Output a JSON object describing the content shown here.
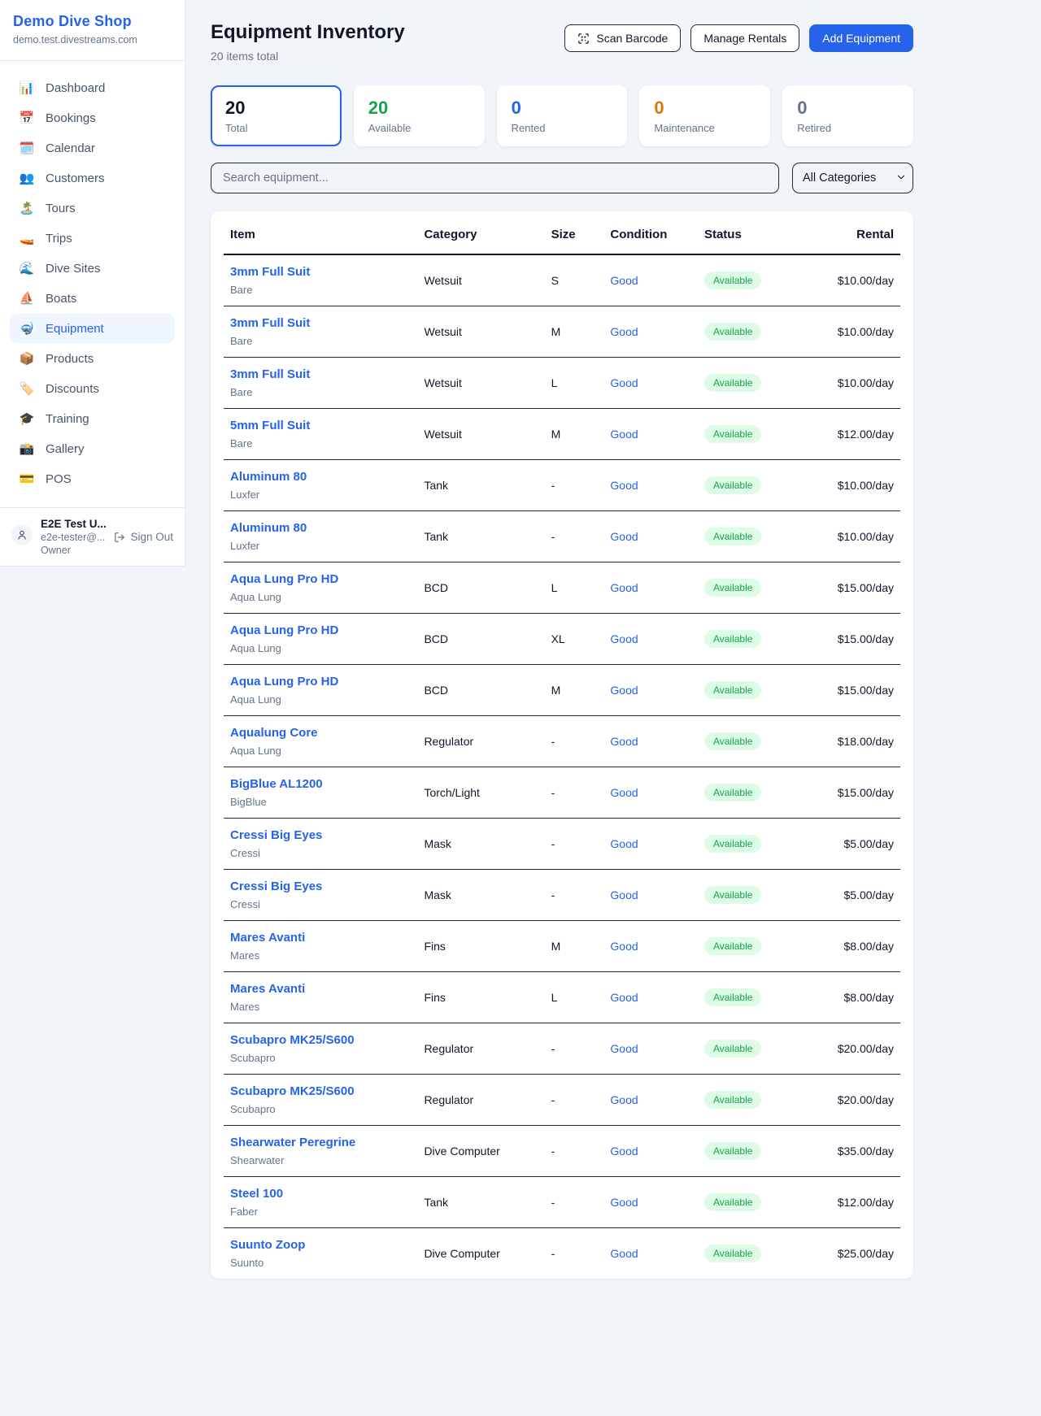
{
  "sidebar": {
    "brand": "Demo Dive Shop",
    "domain": "demo.test.divestreams.com",
    "items": [
      {
        "label": "Dashboard",
        "icon": "📊",
        "icon_name": "bar-chart-icon",
        "active": false
      },
      {
        "label": "Bookings",
        "icon": "📅",
        "icon_name": "calendar-icon",
        "active": false
      },
      {
        "label": "Calendar",
        "icon": "🗓️",
        "icon_name": "spiral-calendar-icon",
        "active": false
      },
      {
        "label": "Customers",
        "icon": "👥",
        "icon_name": "users-icon",
        "active": false
      },
      {
        "label": "Tours",
        "icon": "🏝️",
        "icon_name": "island-icon",
        "active": false
      },
      {
        "label": "Trips",
        "icon": "🚤",
        "icon_name": "speedboat-icon",
        "active": false
      },
      {
        "label": "Dive Sites",
        "icon": "🌊",
        "icon_name": "wave-icon",
        "active": false
      },
      {
        "label": "Boats",
        "icon": "⛵",
        "icon_name": "sailboat-icon",
        "active": false
      },
      {
        "label": "Equipment",
        "icon": "🤿",
        "icon_name": "diving-mask-icon",
        "active": true
      },
      {
        "label": "Products",
        "icon": "📦",
        "icon_name": "package-icon",
        "active": false
      },
      {
        "label": "Discounts",
        "icon": "🏷️",
        "icon_name": "label-tag-icon",
        "active": false
      },
      {
        "label": "Training",
        "icon": "🎓",
        "icon_name": "graduation-cap-icon",
        "active": false
      },
      {
        "label": "Gallery",
        "icon": "📸",
        "icon_name": "camera-icon",
        "active": false
      },
      {
        "label": "POS",
        "icon": "💳",
        "icon_name": "credit-card-icon",
        "active": false
      }
    ],
    "user": {
      "name": "E2E Test U...",
      "email": "e2e-tester@...",
      "role": "Owner",
      "sign_out_label": "Sign Out"
    }
  },
  "header": {
    "title": "Equipment Inventory",
    "subtitle": "20 items total",
    "scan_barcode_label": "Scan Barcode",
    "manage_rentals_label": "Manage Rentals",
    "add_equipment_label": "Add Equipment"
  },
  "stats": [
    {
      "value": "20",
      "label": "Total",
      "color": "#0f172a",
      "selected": true
    },
    {
      "value": "20",
      "label": "Available",
      "color": "#16a34a",
      "selected": false
    },
    {
      "value": "0",
      "label": "Rented",
      "color": "#2563eb",
      "selected": false
    },
    {
      "value": "0",
      "label": "Maintenance",
      "color": "#d97706",
      "selected": false
    },
    {
      "value": "0",
      "label": "Retired",
      "color": "#64748b",
      "selected": false
    }
  ],
  "filters": {
    "search_placeholder": "Search equipment...",
    "category_selected": "All Categories"
  },
  "table": {
    "columns": [
      "Item",
      "Category",
      "Size",
      "Condition",
      "Status",
      "Rental"
    ],
    "rows": [
      {
        "name": "3mm Full Suit",
        "brand": "Bare",
        "category": "Wetsuit",
        "size": "S",
        "condition": "Good",
        "status": "Available",
        "rental": "$10.00/day"
      },
      {
        "name": "3mm Full Suit",
        "brand": "Bare",
        "category": "Wetsuit",
        "size": "M",
        "condition": "Good",
        "status": "Available",
        "rental": "$10.00/day"
      },
      {
        "name": "3mm Full Suit",
        "brand": "Bare",
        "category": "Wetsuit",
        "size": "L",
        "condition": "Good",
        "status": "Available",
        "rental": "$10.00/day"
      },
      {
        "name": "5mm Full Suit",
        "brand": "Bare",
        "category": "Wetsuit",
        "size": "M",
        "condition": "Good",
        "status": "Available",
        "rental": "$12.00/day"
      },
      {
        "name": "Aluminum 80",
        "brand": "Luxfer",
        "category": "Tank",
        "size": "-",
        "condition": "Good",
        "status": "Available",
        "rental": "$10.00/day"
      },
      {
        "name": "Aluminum 80",
        "brand": "Luxfer",
        "category": "Tank",
        "size": "-",
        "condition": "Good",
        "status": "Available",
        "rental": "$10.00/day"
      },
      {
        "name": "Aqua Lung Pro HD",
        "brand": "Aqua Lung",
        "category": "BCD",
        "size": "L",
        "condition": "Good",
        "status": "Available",
        "rental": "$15.00/day"
      },
      {
        "name": "Aqua Lung Pro HD",
        "brand": "Aqua Lung",
        "category": "BCD",
        "size": "XL",
        "condition": "Good",
        "status": "Available",
        "rental": "$15.00/day"
      },
      {
        "name": "Aqua Lung Pro HD",
        "brand": "Aqua Lung",
        "category": "BCD",
        "size": "M",
        "condition": "Good",
        "status": "Available",
        "rental": "$15.00/day"
      },
      {
        "name": "Aqualung Core",
        "brand": "Aqua Lung",
        "category": "Regulator",
        "size": "-",
        "condition": "Good",
        "status": "Available",
        "rental": "$18.00/day"
      },
      {
        "name": "BigBlue AL1200",
        "brand": "BigBlue",
        "category": "Torch/Light",
        "size": "-",
        "condition": "Good",
        "status": "Available",
        "rental": "$15.00/day"
      },
      {
        "name": "Cressi Big Eyes",
        "brand": "Cressi",
        "category": "Mask",
        "size": "-",
        "condition": "Good",
        "status": "Available",
        "rental": "$5.00/day"
      },
      {
        "name": "Cressi Big Eyes",
        "brand": "Cressi",
        "category": "Mask",
        "size": "-",
        "condition": "Good",
        "status": "Available",
        "rental": "$5.00/day"
      },
      {
        "name": "Mares Avanti",
        "brand": "Mares",
        "category": "Fins",
        "size": "M",
        "condition": "Good",
        "status": "Available",
        "rental": "$8.00/day"
      },
      {
        "name": "Mares Avanti",
        "brand": "Mares",
        "category": "Fins",
        "size": "L",
        "condition": "Good",
        "status": "Available",
        "rental": "$8.00/day"
      },
      {
        "name": "Scubapro MK25/S600",
        "brand": "Scubapro",
        "category": "Regulator",
        "size": "-",
        "condition": "Good",
        "status": "Available",
        "rental": "$20.00/day"
      },
      {
        "name": "Scubapro MK25/S600",
        "brand": "Scubapro",
        "category": "Regulator",
        "size": "-",
        "condition": "Good",
        "status": "Available",
        "rental": "$20.00/day"
      },
      {
        "name": "Shearwater Peregrine",
        "brand": "Shearwater",
        "category": "Dive Computer",
        "size": "-",
        "condition": "Good",
        "status": "Available",
        "rental": "$35.00/day"
      },
      {
        "name": "Steel 100",
        "brand": "Faber",
        "category": "Tank",
        "size": "-",
        "condition": "Good",
        "status": "Available",
        "rental": "$12.00/day"
      },
      {
        "name": "Suunto Zoop",
        "brand": "Suunto",
        "category": "Dive Computer",
        "size": "-",
        "condition": "Good",
        "status": "Available",
        "rental": "$25.00/day"
      }
    ]
  },
  "colors": {
    "accent": "#2563eb",
    "status_available_bg": "#dcfce7",
    "status_available_text": "#16a34a",
    "maintenance": "#d97706",
    "page_bg": "#f1f5f9"
  }
}
